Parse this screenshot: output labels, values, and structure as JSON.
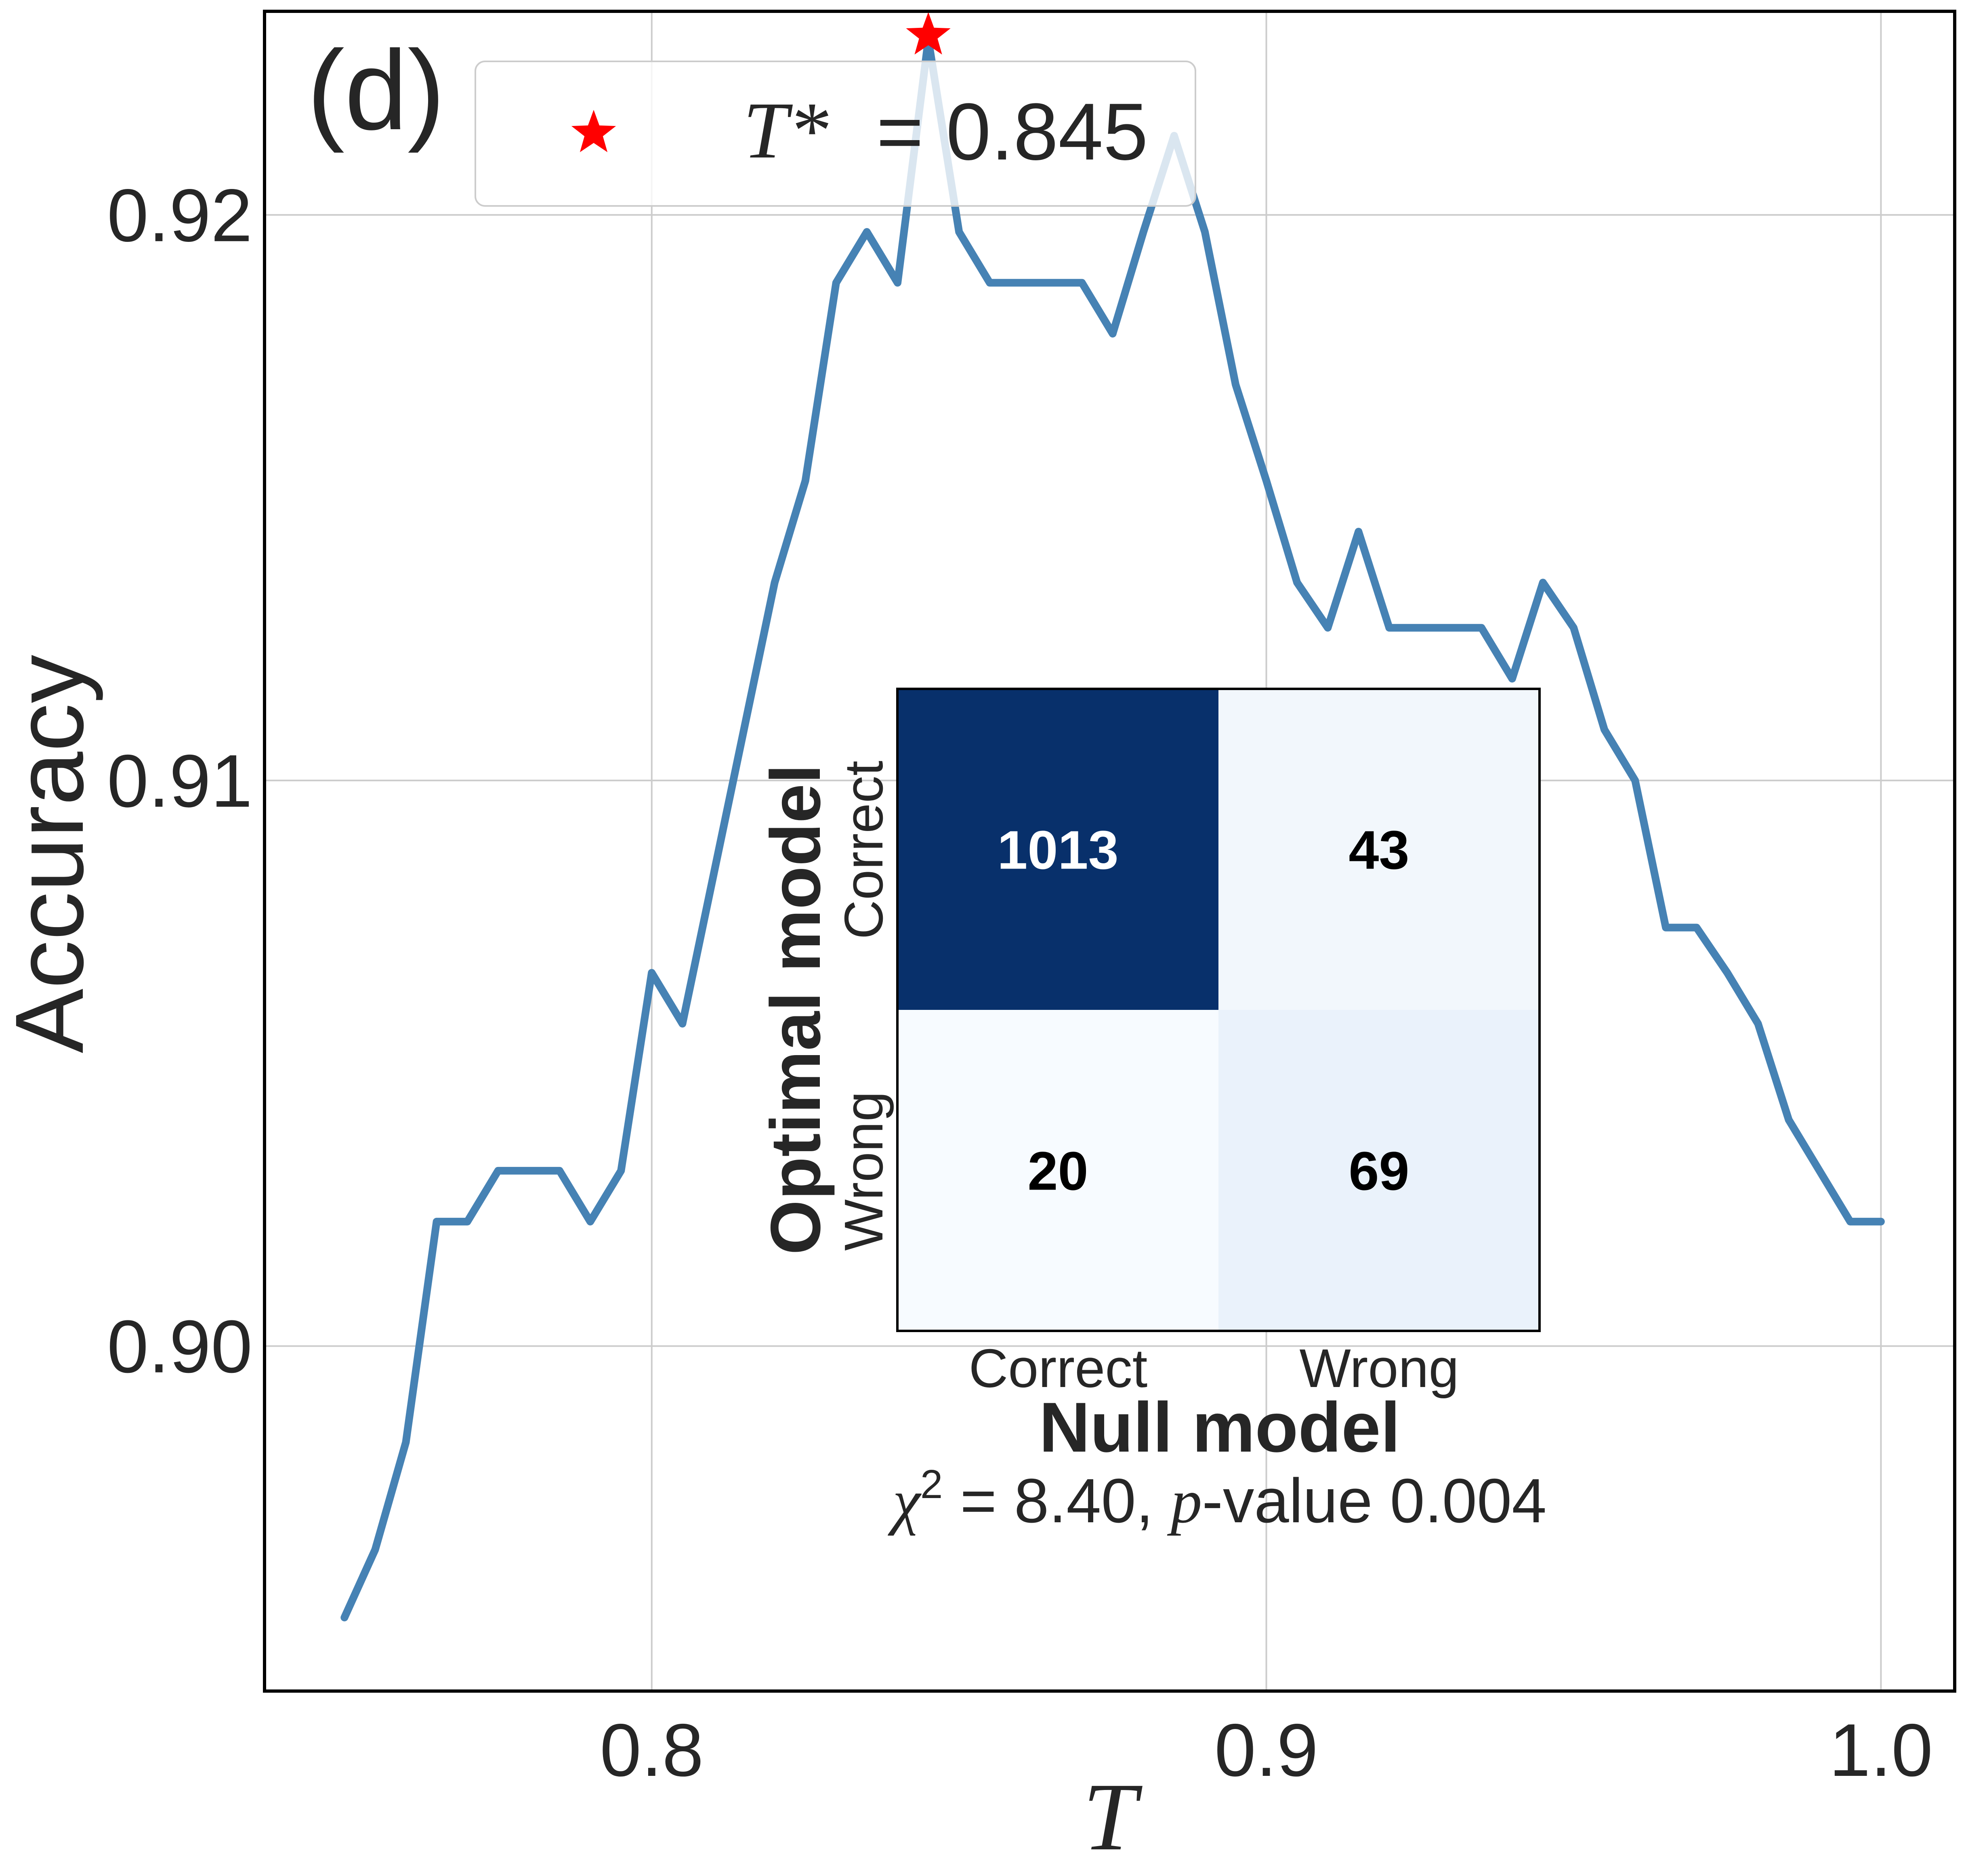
{
  "chart_data": [
    {
      "type": "line",
      "panel_label": "(d)",
      "xlabel": "T",
      "ylabel": "Accuracy",
      "xlim": [
        0.737,
        1.012
      ],
      "ylim": [
        0.8939,
        0.9236
      ],
      "xticks": [
        {
          "value": 0.8,
          "label": "0.8"
        },
        {
          "value": 0.9,
          "label": "0.9"
        },
        {
          "value": 1.0,
          "label": "1.0"
        }
      ],
      "yticks": [
        {
          "value": 0.9,
          "label": "0.90"
        },
        {
          "value": 0.91,
          "label": "0.91"
        },
        {
          "value": 0.92,
          "label": "0.92"
        }
      ],
      "grid": true,
      "legend_position": "top-center",
      "series": [
        {
          "color": "#4682b4",
          "x": [
            0.75,
            0.755,
            0.76,
            0.765,
            0.77,
            0.775,
            0.78,
            0.785,
            0.79,
            0.795,
            0.8,
            0.805,
            0.81,
            0.815,
            0.82,
            0.825,
            0.83,
            0.835,
            0.84,
            0.845,
            0.85,
            0.855,
            0.86,
            0.865,
            0.87,
            0.875,
            0.88,
            0.885,
            0.89,
            0.895,
            0.9,
            0.905,
            0.91,
            0.915,
            0.92,
            0.925,
            0.93,
            0.935,
            0.94,
            0.945,
            0.95,
            0.955,
            0.96,
            0.965,
            0.97,
            0.975,
            0.98,
            0.985,
            0.99,
            0.995,
            1.0
          ],
          "y": [
            0.8952,
            0.8964,
            0.8983,
            0.9022,
            0.9022,
            0.9031,
            0.9031,
            0.9031,
            0.9022,
            0.9031,
            0.9066,
            0.9057,
            0.9083,
            0.9109,
            0.9135,
            0.9153,
            0.9188,
            0.9197,
            0.9188,
            0.9231,
            0.9197,
            0.9188,
            0.9188,
            0.9188,
            0.9188,
            0.9179,
            0.9197,
            0.9214,
            0.9197,
            0.917,
            0.9153,
            0.9135,
            0.9127,
            0.9144,
            0.9127,
            0.9127,
            0.9127,
            0.9127,
            0.9118,
            0.9135,
            0.9127,
            0.9109,
            0.91,
            0.9074,
            0.9074,
            0.9066,
            0.9057,
            0.904,
            0.9031,
            0.9022,
            0.9022
          ]
        }
      ],
      "marker": {
        "x": 0.845,
        "y": 0.9231,
        "symbol": "star",
        "color": "#ff0000"
      },
      "legend": [
        {
          "symbol": "star",
          "color": "#ff0000",
          "math_label": "T*",
          "text_label": "= 0.845"
        }
      ]
    },
    {
      "type": "heatmap",
      "xlabel": "Null model",
      "ylabel": "Optimal model",
      "x_categories": [
        "Correct",
        "Wrong"
      ],
      "y_categories": [
        "Correct",
        "Wrong"
      ],
      "values": [
        [
          1013,
          43
        ],
        [
          20,
          69
        ]
      ],
      "colormap": "Blues",
      "cell_colors": [
        [
          "#08306b",
          "#f2f7fc"
        ],
        [
          "#f7fbff",
          "#eaf2fb"
        ]
      ],
      "text_colors": [
        [
          "#ffffff",
          "#000000"
        ],
        [
          "#000000",
          "#000000"
        ]
      ],
      "stats": {
        "chi2": "8.40",
        "p_value": "0.004"
      }
    }
  ]
}
